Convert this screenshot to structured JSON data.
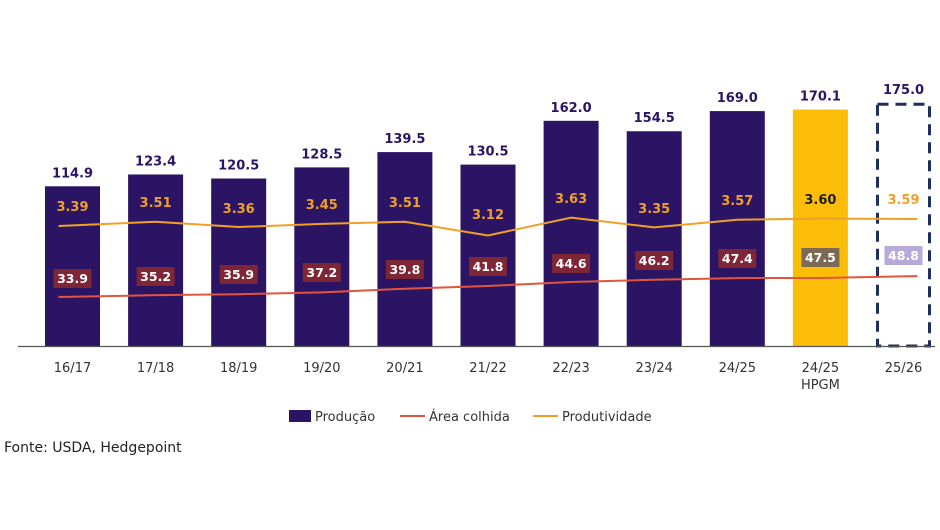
{
  "chart_data": {
    "type": "bar",
    "categories": [
      "16/17",
      "17/18",
      "18/19",
      "19/20",
      "20/21",
      "21/22",
      "22/23",
      "23/24",
      "24/25",
      "24/25\nHPGM",
      "25/26"
    ],
    "series": [
      {
        "name": "Produção",
        "kind": "bar",
        "values": [
          114.9,
          123.4,
          120.5,
          128.5,
          139.5,
          130.5,
          162.0,
          154.5,
          169.0,
          170.1,
          175.0
        ],
        "labels": [
          "114.9",
          "123.4",
          "120.5",
          "128.5",
          "139.5",
          "130.5",
          "162.0",
          "154.5",
          "169.0",
          "170.1",
          "175.0"
        ],
        "color": "#2b1464",
        "highlight_color": "#fbbd08",
        "projection_border_color": "#1c2f5e"
      },
      {
        "name": "Área colhida",
        "kind": "line",
        "values": [
          33.9,
          35.2,
          35.9,
          37.2,
          39.8,
          41.8,
          44.6,
          46.2,
          47.4,
          47.5,
          48.8
        ],
        "labels": [
          "33.9",
          "35.2",
          "35.9",
          "37.2",
          "39.8",
          "41.8",
          "44.6",
          "46.2",
          "47.4",
          "47.5",
          "48.8"
        ],
        "color": "#e0553b",
        "label_bg": "#7e2536"
      },
      {
        "name": "Produtividade",
        "kind": "line",
        "values": [
          3.39,
          3.51,
          3.36,
          3.45,
          3.51,
          3.12,
          3.63,
          3.35,
          3.57,
          3.6,
          3.59
        ],
        "labels": [
          "3.39",
          "3.51",
          "3.36",
          "3.45",
          "3.51",
          "3.12",
          "3.63",
          "3.35",
          "3.57",
          "3.60",
          "3.59"
        ],
        "color": "#f0a028"
      }
    ],
    "legend": {
      "position": "bottom-center",
      "items": [
        "Produção",
        "Área colhida",
        "Produtividade"
      ]
    },
    "title": "",
    "xlabel": "",
    "ylabel": "",
    "ylim": [
      0,
      180
    ]
  },
  "source": "Fonte: USDA, Hedgepoint"
}
